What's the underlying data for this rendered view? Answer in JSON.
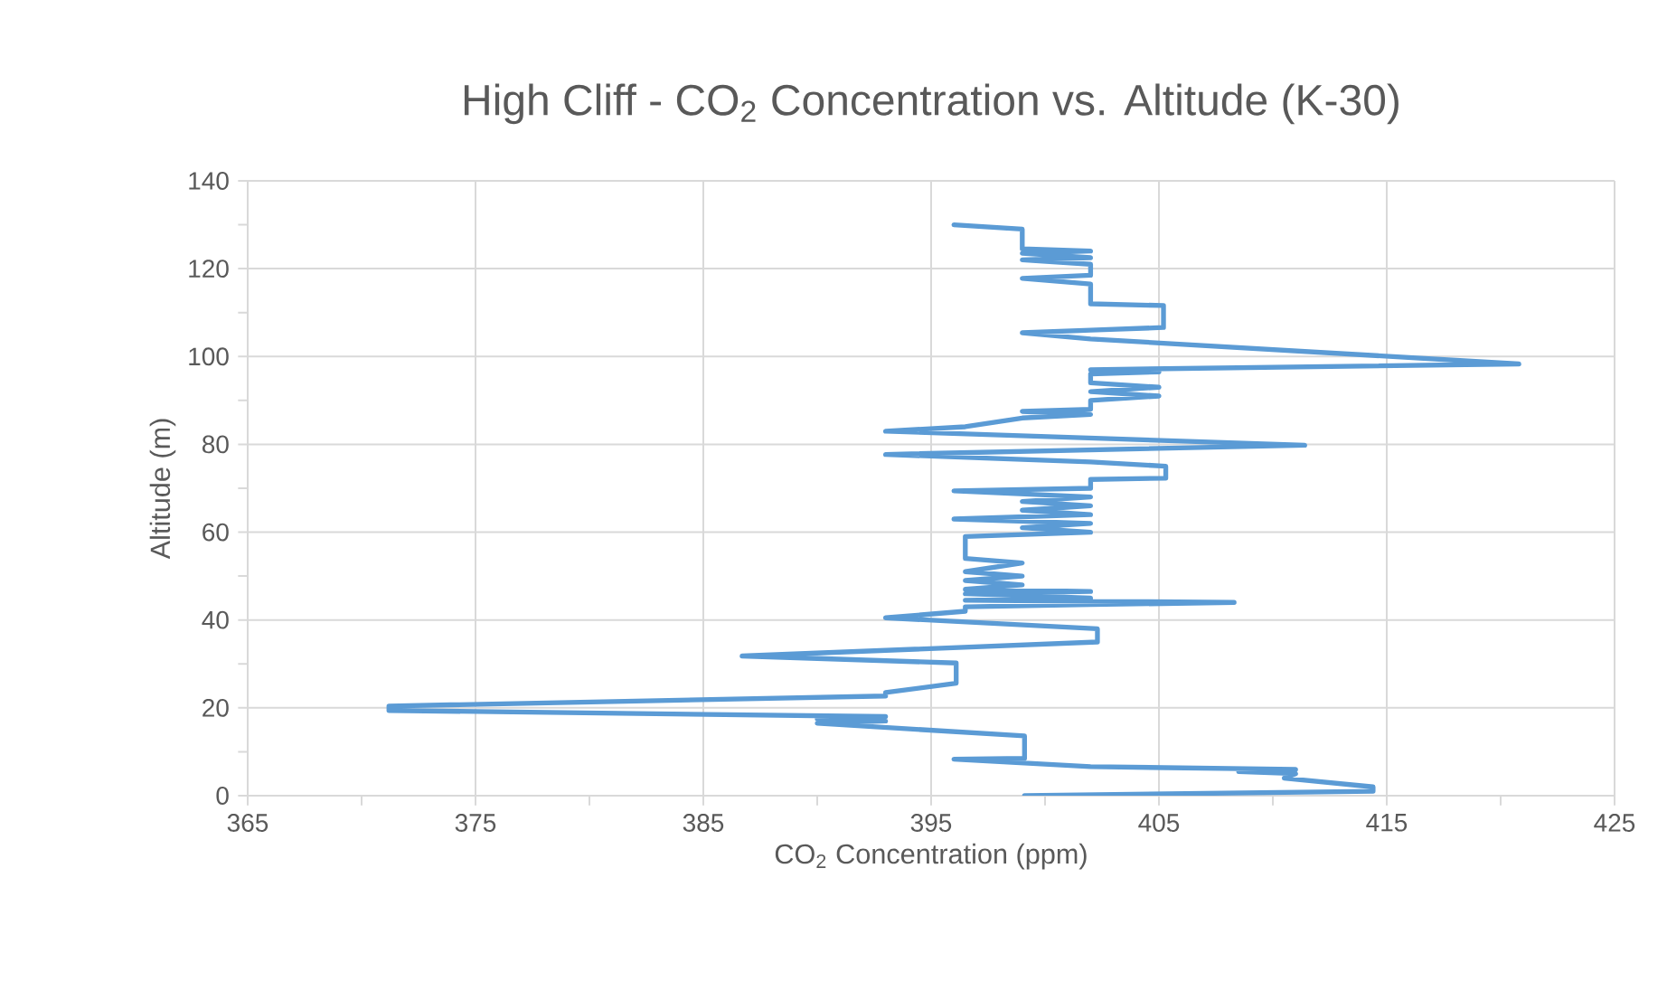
{
  "chart_data": {
    "type": "line",
    "title": "High Cliff - CO$_{2}$ Concentration vs. Altitude (K-30)",
    "xlabel": "CO$_{2}$ Concentration (ppm)",
    "ylabel": "Altitude (m)",
    "xlim": [
      365,
      425
    ],
    "xticks": [
      365,
      {
        "value": 370,
        "label": null
      },
      375,
      {
        "value": 380,
        "label": null
      },
      385,
      {
        "value": 390,
        "label": null
      },
      395,
      {
        "value": 400,
        "label": null
      },
      405,
      {
        "value": 410,
        "label": null
      },
      415,
      {
        "value": 420,
        "label": null
      },
      425
    ],
    "ylim": [
      0,
      140
    ],
    "yticks": [
      0,
      {
        "value": 10,
        "label": null
      },
      20,
      {
        "value": 30,
        "label": null
      },
      40,
      {
        "value": 50,
        "label": null
      },
      60,
      {
        "value": 70,
        "label": null
      },
      80,
      {
        "value": 90,
        "label": null
      },
      100,
      {
        "value": 110,
        "label": null
      },
      120,
      {
        "value": 130,
        "label": null
      },
      140
    ],
    "grid": true,
    "marker": "none",
    "line_style": "solid",
    "series": [
      {
        "color": "#5b9bd5",
        "x": [
          399.1,
          414.4,
          414.4,
          410.5,
          411,
          408.5,
          411,
          402,
          396,
          399.1,
          399.1,
          390,
          393,
          390,
          393,
          371.2,
          371.2,
          393,
          393,
          396.1,
          396.1,
          386.7,
          402.3,
          402.3,
          393,
          396.5,
          396.5,
          402,
          408.3,
          396.5,
          402,
          396.5,
          402,
          396.5,
          399,
          396.5,
          399,
          396.5,
          399,
          396.5,
          396.5,
          402,
          399,
          402,
          396,
          402,
          399,
          402,
          399,
          402,
          396,
          402,
          402,
          405.3,
          405.3,
          402,
          393,
          411.4,
          393,
          396.5,
          399,
          402,
          399,
          402,
          402,
          405,
          402,
          405,
          402,
          402,
          405,
          402,
          420.8,
          402,
          399,
          402,
          405.2,
          405.2,
          402,
          402,
          399,
          402,
          402,
          399,
          402,
          399,
          402,
          399,
          399,
          396
        ],
        "values": [
          0,
          1,
          2,
          4,
          5,
          5.5,
          6,
          6.6,
          8.3,
          8.5,
          13.6,
          16.5,
          17,
          17.5,
          18,
          19.4,
          20.4,
          22.7,
          23.5,
          25.6,
          30.2,
          31.8,
          35,
          38,
          40.5,
          42,
          43,
          43.5,
          44,
          44.5,
          45,
          46,
          46.5,
          47,
          48,
          49,
          50,
          51,
          53,
          54,
          59,
          60,
          61,
          62,
          63,
          64,
          65,
          66,
          67,
          68,
          69.4,
          70,
          72,
          72.3,
          75,
          76,
          77.7,
          79.8,
          83,
          84,
          86,
          86.8,
          87.5,
          88,
          90,
          91,
          92,
          93,
          94,
          96,
          96.5,
          97,
          98.3,
          104,
          105.4,
          106,
          106.6,
          111.6,
          112,
          116.5,
          117.8,
          118.5,
          121,
          122,
          122.5,
          123.5,
          124,
          124.5,
          129,
          130
        ]
      }
    ]
  }
}
